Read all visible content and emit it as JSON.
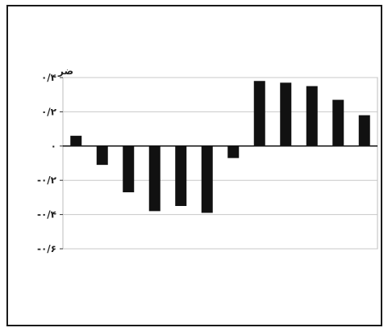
{
  "chart_data": {
    "type": "bar",
    "title": "",
    "xlabel": "",
    "ylabel": "",
    "ylim": [
      -0.6,
      0.4
    ],
    "yticks": [
      0.4,
      0.2,
      0,
      -0.2,
      -0.4,
      -0.6
    ],
    "ytick_labels": [
      "۰/۴",
      "۰/۲",
      "۰",
      "-۰/۲",
      "-۰/۴",
      "-۰/۶"
    ],
    "y_unit_mark": "ضر",
    "grid": true,
    "categories": [
      "",
      "",
      "",
      "",
      "",
      "",
      "",
      "",
      "",
      "",
      "",
      ""
    ],
    "values": [
      0.06,
      -0.11,
      -0.27,
      -0.38,
      -0.35,
      -0.39,
      -0.07,
      0.38,
      0.37,
      0.35,
      0.27,
      0.18
    ],
    "bar_color": "#111111"
  }
}
